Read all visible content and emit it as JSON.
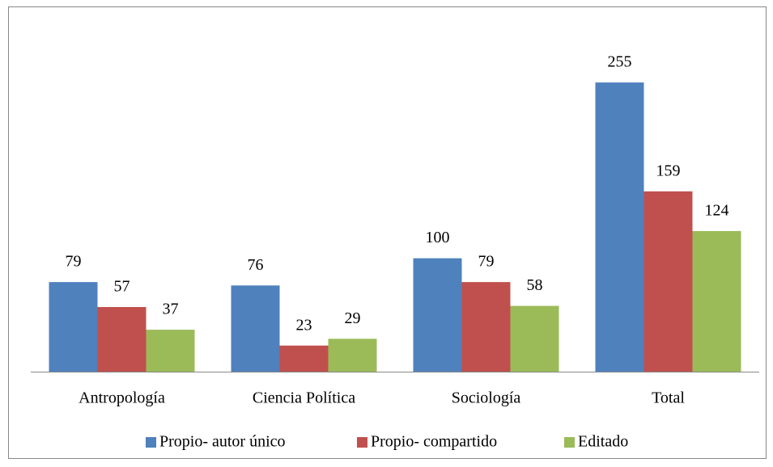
{
  "chart_data": {
    "type": "bar",
    "categories": [
      "Antropología",
      "Ciencia Política",
      "Sociología",
      "Total"
    ],
    "series": [
      {
        "name": "Propio- autor único",
        "color": "#4f81bd",
        "values": [
          79,
          76,
          100,
          255
        ]
      },
      {
        "name": "Propio- compartido",
        "color": "#c0504d",
        "values": [
          57,
          23,
          79,
          159
        ]
      },
      {
        "name": "Editado",
        "color": "#9bbb59",
        "values": [
          37,
          29,
          58,
          124
        ]
      }
    ],
    "ylim": [
      0,
      280
    ],
    "legend": "bottom"
  }
}
